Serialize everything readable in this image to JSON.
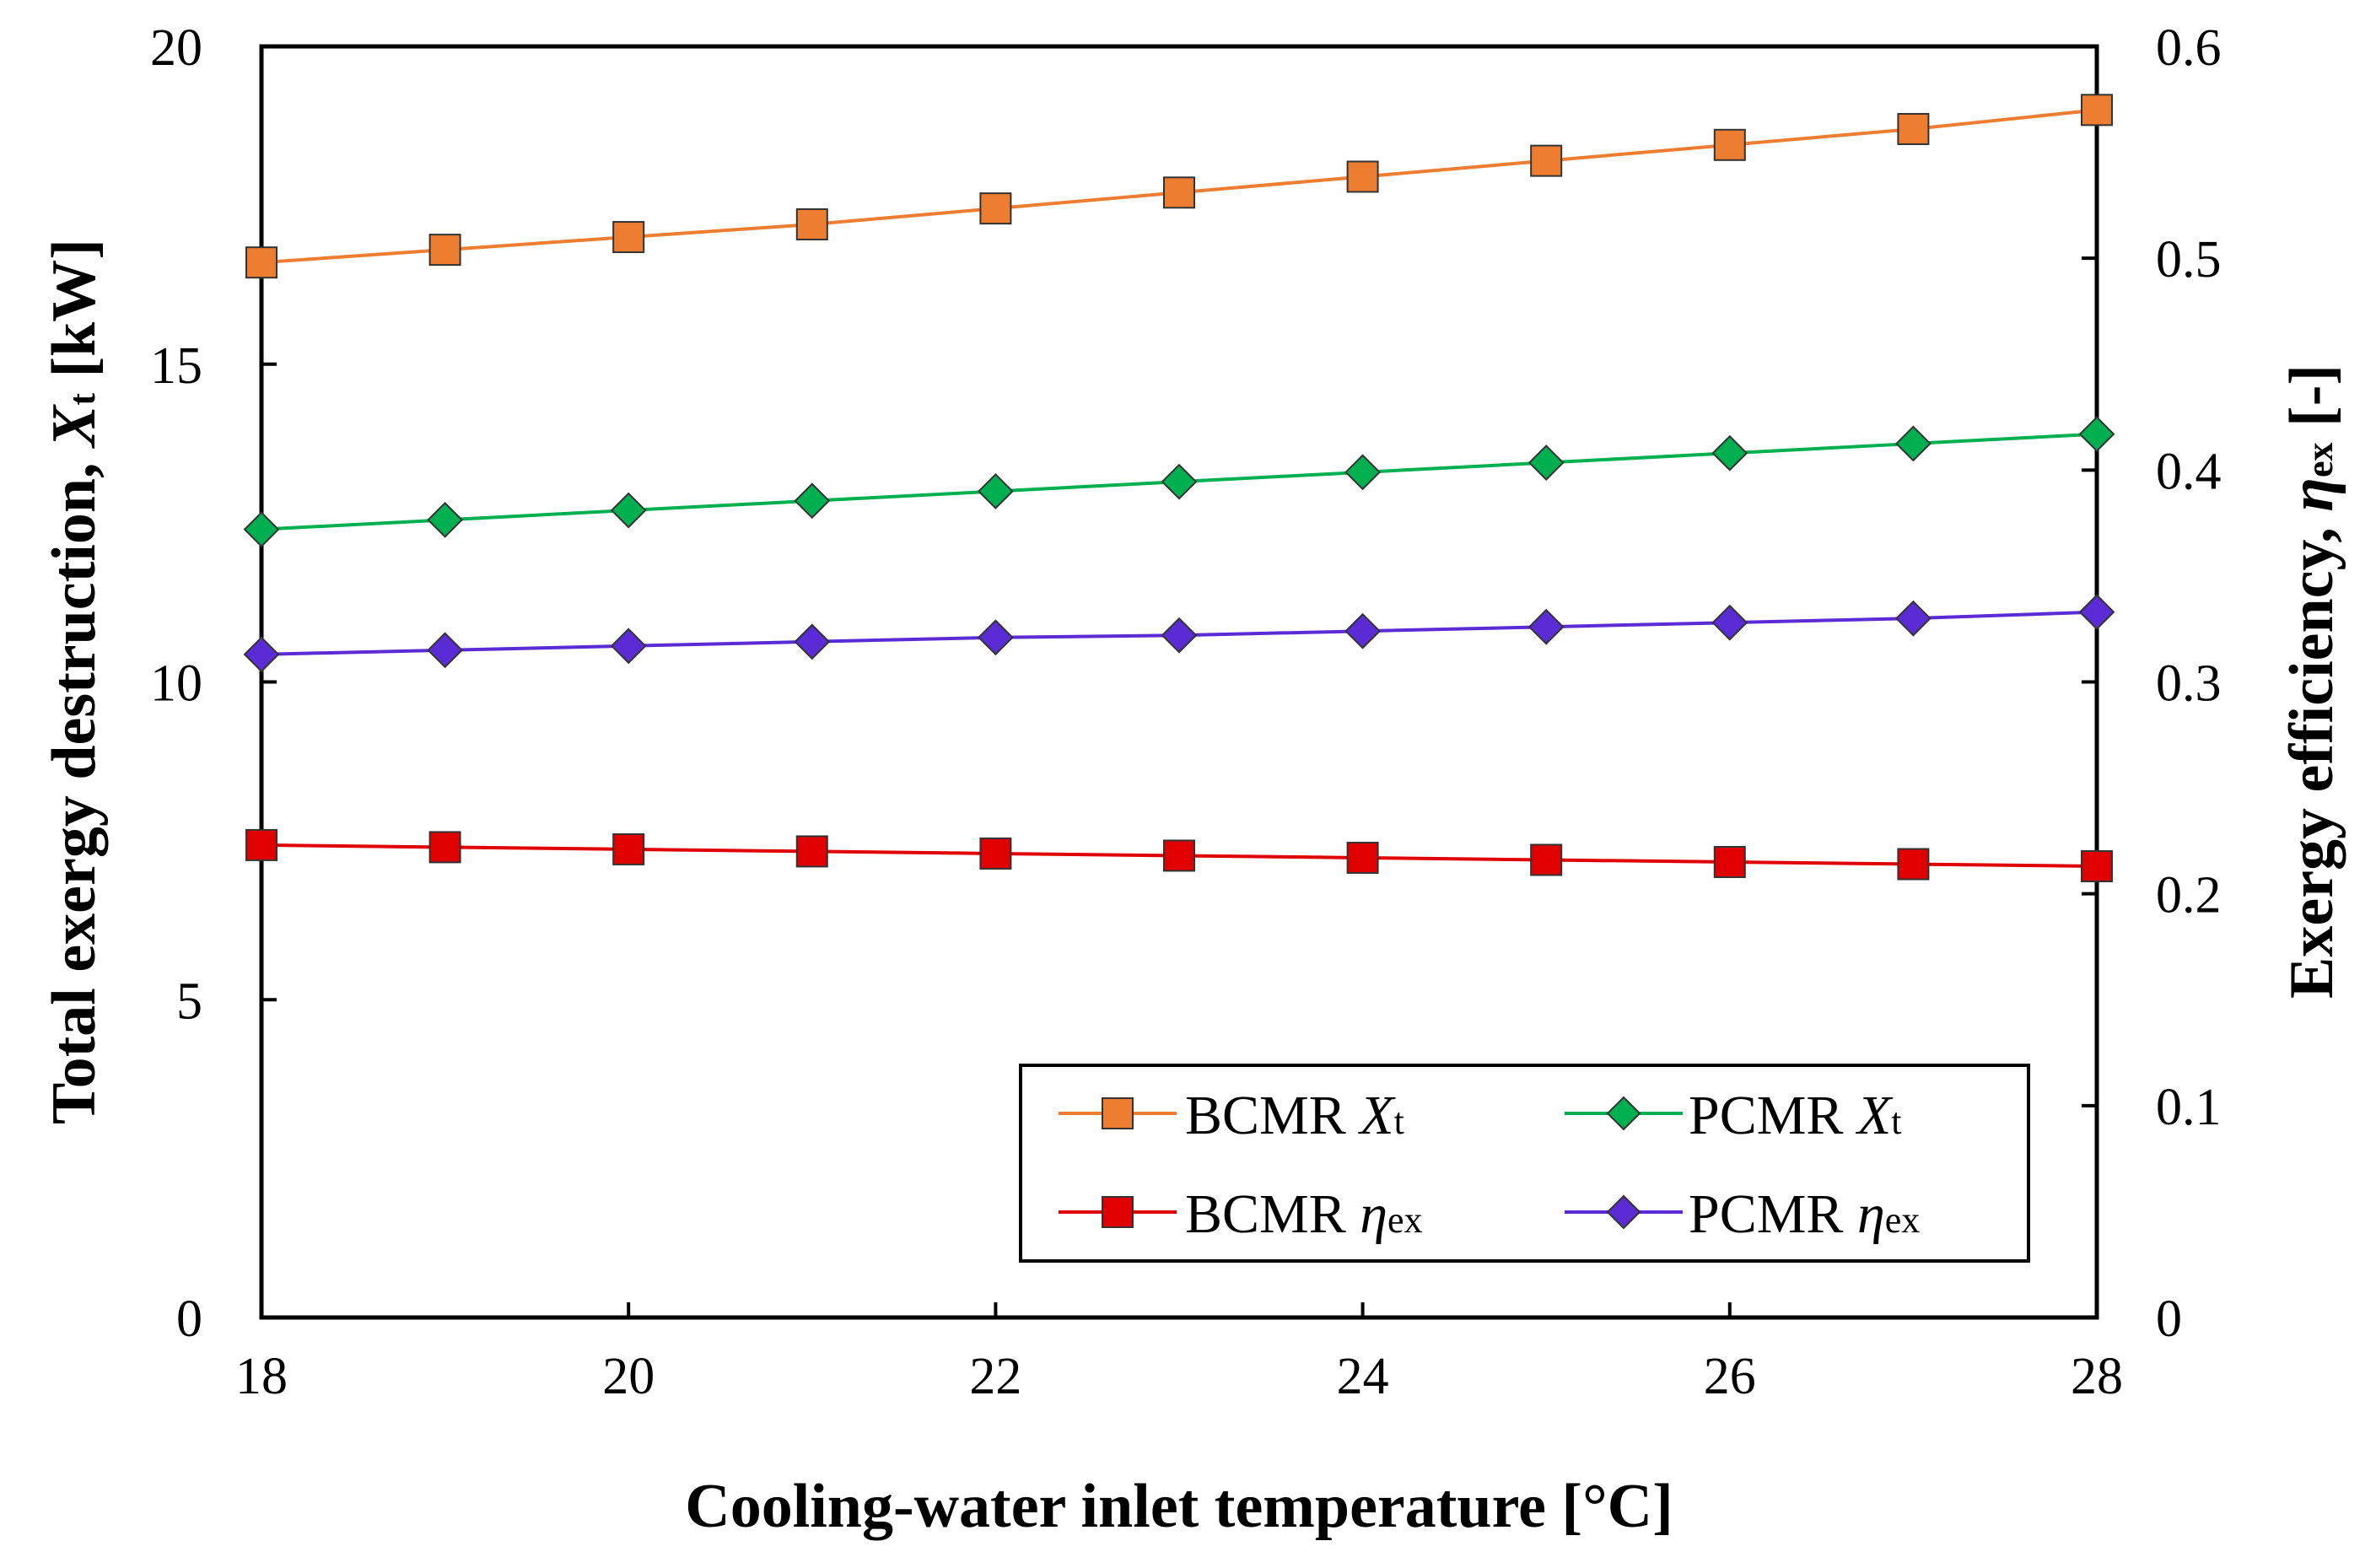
{
  "chart_data": {
    "type": "line",
    "title": "",
    "xlabel": "Cooling-water  inlet temperature [°C]",
    "ylabel_left": {
      "main": "Total exergy destruction, ",
      "symbol": "X",
      "sub": "t",
      "unit": " [kW]"
    },
    "ylabel_right": {
      "main": "Exergy efficiency, ",
      "symbol": "η",
      "sub": "ex",
      "unit": " [-]"
    },
    "x": [
      18,
      19,
      20,
      21,
      22,
      23,
      24,
      25,
      26,
      27,
      28
    ],
    "xlim": [
      18,
      28
    ],
    "xticks": [
      "18",
      "20",
      "22",
      "24",
      "26",
      "28"
    ],
    "ylim_left": [
      0,
      20
    ],
    "yticks_left": [
      "0",
      "5",
      "10",
      "15",
      "20"
    ],
    "ylim_right": [
      0,
      0.6
    ],
    "yticks_right": [
      "0",
      "0.1",
      "0.2",
      "0.3",
      "0.4",
      "0.5",
      "0.6"
    ],
    "grid": false,
    "legend_position": "bottom-right",
    "series": [
      {
        "name": "BCMR Xt",
        "label": "BCMR ",
        "symbol": "X",
        "sub": "t",
        "axis": "left",
        "marker": "square",
        "color": "#ED7D31",
        "values": [
          16.6,
          16.8,
          17.0,
          17.2,
          17.45,
          17.7,
          17.95,
          18.2,
          18.45,
          18.7,
          19.0
        ]
      },
      {
        "name": "PCMR Xt",
        "label": "PCMR ",
        "symbol": "X",
        "sub": "t",
        "axis": "left",
        "marker": "diamond",
        "color": "#00B050",
        "values": [
          12.4,
          12.55,
          12.7,
          12.85,
          13.0,
          13.15,
          13.3,
          13.45,
          13.6,
          13.75,
          13.9
        ]
      },
      {
        "name": "BCMR ηex",
        "label": "BCMR ",
        "symbol": "η",
        "sub": "ex",
        "axis": "right",
        "marker": "square",
        "color": "#E00000",
        "values": [
          0.223,
          0.222,
          0.221,
          0.22,
          0.219,
          0.218,
          0.217,
          0.216,
          0.215,
          0.214,
          0.213
        ]
      },
      {
        "name": "PCMR ηex",
        "label": "PCMR ",
        "symbol": "η",
        "sub": "ex",
        "axis": "right",
        "marker": "diamond",
        "color": "#5B2CD6",
        "values": [
          0.313,
          0.315,
          0.317,
          0.319,
          0.321,
          0.322,
          0.324,
          0.326,
          0.328,
          0.33,
          0.333
        ]
      }
    ]
  }
}
